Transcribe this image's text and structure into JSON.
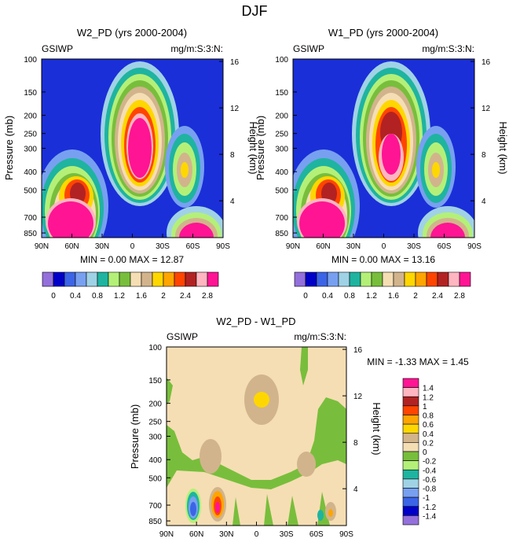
{
  "figure_title": "DJF",
  "colors": {
    "ocean_blue": "#1a2fd8",
    "cb_top": [
      "#9370db",
      "#0000c8",
      "#3c64e6",
      "#78a0f0",
      "#a0d2e6",
      "#1eb4a0",
      "#b4f078",
      "#78be3c",
      "#f5deb3",
      "#d2b48c",
      "#ffd700",
      "#ffa500",
      "#ff4500",
      "#b22222",
      "#ffb6c1",
      "#ff1493"
    ],
    "cb_diff": [
      "#9370db",
      "#0000c8",
      "#3c64e6",
      "#78a0f0",
      "#a0d2e6",
      "#1eb4a0",
      "#b4f078",
      "#78be3c",
      "#f5deb3",
      "#d2b48c",
      "#ffd700",
      "#ffa500",
      "#ff4500",
      "#b22222",
      "#ffb6c1",
      "#ff1493"
    ]
  },
  "chart_data": [
    {
      "type": "heatmap",
      "title": "W2_PD (yrs 2000-2004)",
      "left_label": "GSIWP",
      "right_label": "mg/m:S:3:N:",
      "ylabel": "Pressure (mb)",
      "ylabel_right": "Height (km)",
      "xticks": [
        "90N",
        "60N",
        "30N",
        "0",
        "30S",
        "60S",
        "90S"
      ],
      "yticks": [
        100,
        150,
        200,
        250,
        300,
        400,
        500,
        700,
        850
      ],
      "yticks_right": [
        16,
        12,
        8,
        4
      ],
      "ylim": [
        100,
        900
      ],
      "min_label": "MIN =",
      "min": "0.00",
      "max_label": "MAX =",
      "max": "12.87"
    },
    {
      "type": "heatmap",
      "title": "W1_PD (yrs 2000-2004)",
      "left_label": "GSIWP",
      "right_label": "mg/m:S:3:N:",
      "ylabel": "Pressure (mb)",
      "ylabel_right": "Height (km)",
      "xticks": [
        "90N",
        "60N",
        "30N",
        "0",
        "30S",
        "60S",
        "90S"
      ],
      "yticks": [
        100,
        150,
        200,
        250,
        300,
        400,
        500,
        700,
        850
      ],
      "yticks_right": [
        16,
        12,
        8,
        4
      ],
      "ylim": [
        100,
        900
      ],
      "min_label": "MIN =",
      "min": "0.00",
      "max_label": "MAX =",
      "max": "13.16"
    },
    {
      "type": "heatmap",
      "title": "W2_PD - W1_PD",
      "left_label": "GSIWP",
      "right_label": "mg/m:S:3:N:",
      "ylabel": "Pressure (mb)",
      "ylabel_right": "Height (km)",
      "xticks": [
        "90N",
        "60N",
        "30N",
        "0",
        "30S",
        "60S",
        "90S"
      ],
      "yticks": [
        100,
        150,
        200,
        250,
        300,
        400,
        500,
        700,
        850
      ],
      "yticks_right": [
        16,
        12,
        8,
        4
      ],
      "ylim": [
        100,
        900
      ],
      "min_label": "MIN =",
      "min": "-1.33",
      "max_label": "MAX =",
      "max": "1.45"
    }
  ],
  "colorbar_top": {
    "labels": [
      "0",
      "0.4",
      "0.8",
      "1.2",
      "1.6",
      "2",
      "2.4",
      "2.8"
    ]
  },
  "colorbar_diff": {
    "labels": [
      "1.4",
      "1.2",
      "1",
      "0.8",
      "0.6",
      "0.4",
      "0.2",
      "0",
      "-0.2",
      "-0.4",
      "-0.6",
      "-0.8",
      "-1",
      "-1.2",
      "-1.4"
    ]
  }
}
